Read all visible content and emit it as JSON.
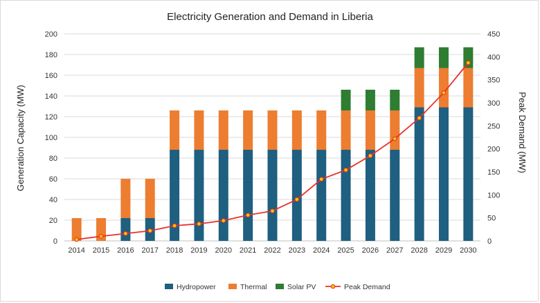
{
  "chart_data": {
    "type": "bar",
    "title": "Electricity Generation and Demand in Liberia",
    "xlabel": "",
    "ylabel": "Generation Capacity (MW)",
    "y2label": "Peak Demand (MW)",
    "ylim": [
      0,
      200
    ],
    "y2lim": [
      0,
      450
    ],
    "yticks": [
      0,
      20,
      40,
      60,
      80,
      100,
      120,
      140,
      160,
      180,
      200
    ],
    "y2ticks": [
      0,
      50,
      100,
      150,
      200,
      250,
      300,
      350,
      400,
      450
    ],
    "stacked": true,
    "categories": [
      "2014",
      "2015",
      "2016",
      "2017",
      "2018",
      "2019",
      "2020",
      "2021",
      "2022",
      "2023",
      "2024",
      "2025",
      "2026",
      "2027",
      "2028",
      "2029",
      "2030"
    ],
    "series": [
      {
        "name": "Hydropower",
        "type": "bar",
        "axis": "left",
        "color": "#1f5f7f",
        "values": [
          0,
          0,
          22,
          22,
          88,
          88,
          88,
          88,
          88,
          88,
          88,
          88,
          88,
          88,
          129,
          129,
          129
        ]
      },
      {
        "name": "Thermal",
        "type": "bar",
        "axis": "left",
        "color": "#ed7d31",
        "values": [
          22,
          22,
          38,
          38,
          38,
          38,
          38,
          38,
          38,
          38,
          38,
          38,
          38,
          38,
          38,
          38,
          38
        ]
      },
      {
        "name": "Solar PV",
        "type": "bar",
        "axis": "left",
        "color": "#2e7d32",
        "values": [
          0,
          0,
          0,
          0,
          0,
          0,
          0,
          0,
          0,
          0,
          0,
          20,
          20,
          20,
          20,
          20,
          20
        ]
      },
      {
        "name": "Peak Demand",
        "type": "line",
        "axis": "right",
        "color": "#e8302a",
        "marker_color": "#f5c400",
        "values": [
          3,
          10,
          16,
          22,
          33,
          37,
          44,
          56,
          65,
          90,
          134,
          154,
          185,
          222,
          267,
          322,
          387
        ]
      }
    ],
    "legend": "bottom",
    "grid": true
  }
}
